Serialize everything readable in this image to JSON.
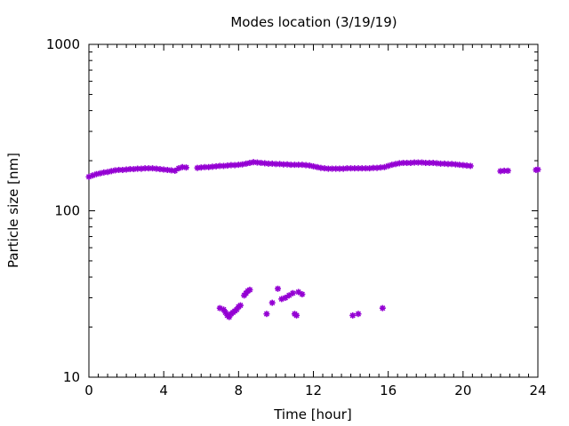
{
  "chart_data": {
    "type": "scatter",
    "title": "Modes location (3/19/19)",
    "xlabel": "Time [hour]",
    "ylabel": "Particle size [nm]",
    "xlim": [
      0,
      24
    ],
    "ylim": [
      10,
      1000
    ],
    "yscale": "log",
    "xticks": [
      0,
      4,
      8,
      12,
      16,
      20,
      24
    ],
    "xtick_labels": [
      "0",
      "4",
      "8",
      "12",
      "16",
      "20",
      "24"
    ],
    "yticks": [
      10,
      100,
      1000
    ],
    "ytick_labels": [
      "10",
      "100",
      "1000"
    ],
    "grid": false,
    "legend": "none",
    "color": "#9400d3",
    "series": [
      {
        "points": [
          [
            0.0,
            160
          ],
          [
            0.2,
            163
          ],
          [
            0.4,
            166
          ],
          [
            0.6,
            168
          ],
          [
            0.8,
            170
          ],
          [
            1.0,
            171
          ],
          [
            1.2,
            173
          ],
          [
            1.4,
            175
          ],
          [
            1.6,
            176
          ],
          [
            1.8,
            176
          ],
          [
            2.0,
            177
          ],
          [
            2.2,
            178
          ],
          [
            2.4,
            178
          ],
          [
            2.6,
            179
          ],
          [
            2.8,
            179
          ],
          [
            3.0,
            180
          ],
          [
            3.2,
            180
          ],
          [
            3.4,
            180
          ],
          [
            3.6,
            179
          ],
          [
            3.8,
            178
          ],
          [
            4.0,
            177
          ],
          [
            4.2,
            176
          ],
          [
            4.4,
            175
          ],
          [
            4.6,
            174
          ],
          [
            4.8,
            180
          ],
          [
            5.0,
            183
          ],
          [
            5.2,
            182
          ],
          [
            5.8,
            181
          ],
          [
            6.0,
            182
          ],
          [
            6.2,
            183
          ],
          [
            6.4,
            183
          ],
          [
            6.6,
            184
          ],
          [
            6.8,
            185
          ],
          [
            7.0,
            186
          ],
          [
            7.2,
            186
          ],
          [
            7.4,
            187
          ],
          [
            7.6,
            188
          ],
          [
            7.8,
            188
          ],
          [
            8.0,
            189
          ],
          [
            8.2,
            190
          ],
          [
            8.4,
            192
          ],
          [
            8.6,
            194
          ],
          [
            8.8,
            196
          ],
          [
            9.0,
            195
          ],
          [
            9.2,
            194
          ],
          [
            9.4,
            193
          ],
          [
            9.6,
            192
          ],
          [
            9.8,
            192
          ],
          [
            10.0,
            191
          ],
          [
            10.2,
            191
          ],
          [
            10.4,
            190
          ],
          [
            10.6,
            190
          ],
          [
            10.8,
            189
          ],
          [
            11.0,
            189
          ],
          [
            11.2,
            189
          ],
          [
            11.4,
            189
          ],
          [
            11.6,
            188
          ],
          [
            11.8,
            187
          ],
          [
            12.0,
            185
          ],
          [
            12.2,
            183
          ],
          [
            12.4,
            181
          ],
          [
            12.6,
            180
          ],
          [
            12.8,
            179
          ],
          [
            13.0,
            179
          ],
          [
            13.2,
            179
          ],
          [
            13.4,
            179
          ],
          [
            13.6,
            179
          ],
          [
            13.8,
            180
          ],
          [
            14.0,
            180
          ],
          [
            14.2,
            180
          ],
          [
            14.4,
            180
          ],
          [
            14.6,
            180
          ],
          [
            14.8,
            180
          ],
          [
            15.0,
            180
          ],
          [
            15.2,
            181
          ],
          [
            15.4,
            181
          ],
          [
            15.6,
            182
          ],
          [
            15.8,
            183
          ],
          [
            16.0,
            186
          ],
          [
            16.2,
            189
          ],
          [
            16.4,
            191
          ],
          [
            16.6,
            193
          ],
          [
            16.8,
            194
          ],
          [
            17.0,
            194
          ],
          [
            17.2,
            194
          ],
          [
            17.4,
            195
          ],
          [
            17.6,
            195
          ],
          [
            17.8,
            195
          ],
          [
            18.0,
            194
          ],
          [
            18.2,
            194
          ],
          [
            18.4,
            194
          ],
          [
            18.6,
            193
          ],
          [
            18.8,
            192
          ],
          [
            19.0,
            192
          ],
          [
            19.2,
            191
          ],
          [
            19.4,
            191
          ],
          [
            19.6,
            190
          ],
          [
            19.8,
            189
          ],
          [
            20.0,
            188
          ],
          [
            20.2,
            187
          ],
          [
            20.4,
            186
          ],
          [
            22.0,
            173
          ],
          [
            22.2,
            174
          ],
          [
            22.4,
            174
          ],
          [
            23.9,
            176
          ],
          [
            24.0,
            177
          ]
        ]
      },
      {
        "points": [
          [
            7.0,
            26.0
          ],
          [
            7.2,
            25.5
          ],
          [
            7.3,
            24.5
          ],
          [
            7.4,
            23.5
          ],
          [
            7.5,
            23.0
          ],
          [
            7.6,
            24.0
          ],
          [
            7.7,
            24.5
          ],
          [
            7.8,
            25.0
          ],
          [
            7.9,
            25.5
          ],
          [
            8.0,
            26.5
          ],
          [
            8.1,
            27.0
          ],
          [
            8.3,
            31.0
          ],
          [
            8.4,
            32.0
          ],
          [
            8.5,
            33.0
          ],
          [
            8.6,
            33.5
          ],
          [
            9.5,
            24.0
          ],
          [
            9.8,
            28.0
          ],
          [
            10.1,
            34.0
          ],
          [
            10.3,
            29.5
          ],
          [
            10.5,
            30.0
          ],
          [
            10.7,
            31.0
          ],
          [
            10.9,
            32.0
          ],
          [
            11.0,
            24.0
          ],
          [
            11.1,
            23.5
          ],
          [
            11.2,
            32.5
          ],
          [
            11.4,
            31.5
          ],
          [
            14.1,
            23.5
          ],
          [
            14.4,
            24.0
          ],
          [
            15.7,
            26.0
          ]
        ]
      }
    ]
  }
}
